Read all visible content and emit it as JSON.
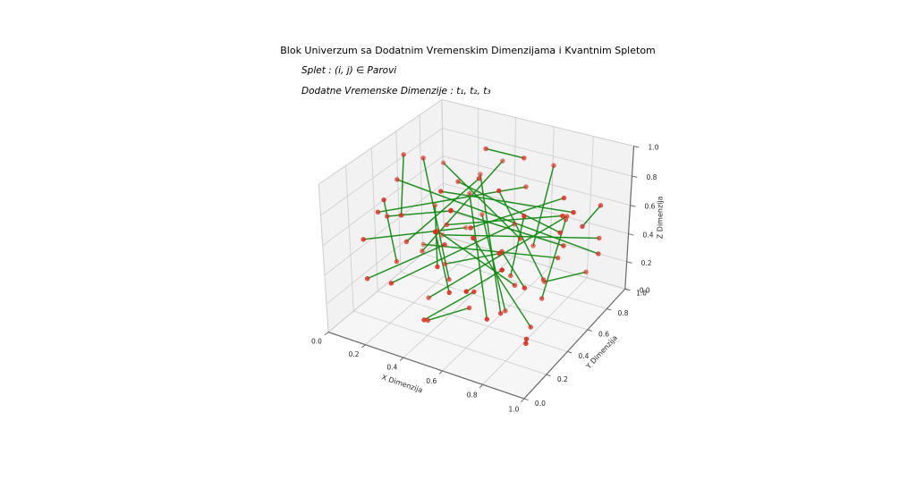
{
  "figure": {
    "background": "#ffffff"
  },
  "annotations": [
    {
      "text": "Splet : (i, j) ∈ Parovi"
    },
    {
      "text": "Dodatne Vremenske Dimenzije : t₁, t₂, t₃"
    }
  ],
  "chart_data": {
    "type": "scatter",
    "projection": "3d",
    "title": "Blok Univerzum sa Dodatnim Vremenskim Dimenzijama i Kvantnim Spletom",
    "xlabel": "X Dimenzija",
    "ylabel": "Y Dimenzija",
    "zlabel": "Z Dimenzija",
    "xlim": [
      0,
      1
    ],
    "ylim": [
      0,
      1
    ],
    "zlim": [
      0,
      1
    ],
    "ticks": [
      0,
      0.2,
      0.4,
      0.6,
      0.8,
      1.0
    ],
    "grid": true,
    "legend": null,
    "view": {
      "elev": 30,
      "azim": -60,
      "zaspect": 0.75,
      "perspective": 0.16
    },
    "colors": {
      "point": "#f02a1f",
      "point_edge": "#c62820",
      "line": "#0f8a0f",
      "pane": "#f2f2f2",
      "pane_floor": "#f6f6f6",
      "pane_edge": "#dedede",
      "grid": "#cccccc",
      "axis": "#6b6b6b",
      "text": "#262626"
    },
    "points": [
      [
        0.13,
        0.62,
        0.85
      ],
      [
        0.72,
        0.28,
        0.64
      ],
      [
        0.45,
        0.91,
        0.32
      ],
      [
        0.88,
        0.55,
        0.77
      ],
      [
        0.21,
        0.34,
        0.48
      ],
      [
        0.57,
        0.77,
        0.91
      ],
      [
        0.94,
        0.12,
        0.25
      ],
      [
        0.36,
        0.48,
        0.66
      ],
      [
        0.08,
        0.85,
        0.14
      ],
      [
        0.63,
        0.22,
        0.39
      ],
      [
        0.29,
        0.66,
        0.72
      ],
      [
        0.81,
        0.41,
        0.08
      ],
      [
        0.52,
        0.09,
        0.83
      ],
      [
        0.17,
        0.53,
        0.27
      ],
      [
        0.75,
        0.86,
        0.52
      ],
      [
        0.41,
        0.19,
        0.12
      ],
      [
        0.98,
        0.72,
        0.44
      ],
      [
        0.24,
        0.95,
        0.58
      ],
      [
        0.66,
        0.38,
        0.96
      ],
      [
        0.11,
        0.27,
        0.69
      ],
      [
        0.58,
        0.64,
        0.18
      ],
      [
        0.85,
        0.07,
        0.73
      ],
      [
        0.33,
        0.81,
        0.41
      ],
      [
        0.7,
        0.46,
        0.29
      ],
      [
        0.05,
        0.58,
        0.87
      ],
      [
        0.49,
        0.15,
        0.55
      ],
      [
        0.91,
        0.69,
        0.62
      ],
      [
        0.27,
        0.42,
        0.05
      ],
      [
        0.64,
        0.93,
        0.79
      ],
      [
        0.15,
        0.11,
        0.36
      ],
      [
        0.78,
        0.57,
        0.15
      ],
      [
        0.39,
        0.74,
        0.93
      ],
      [
        0.86,
        0.25,
        0.49
      ],
      [
        0.2,
        0.88,
        0.22
      ],
      [
        0.55,
        0.33,
        0.71
      ],
      [
        0.96,
        0.49,
        0.86
      ],
      [
        0.31,
        0.06,
        0.43
      ],
      [
        0.68,
        0.79,
        0.07
      ],
      [
        0.09,
        0.37,
        0.59
      ],
      [
        0.74,
        0.14,
        0.31
      ],
      [
        0.43,
        0.61,
        0.82
      ],
      [
        0.89,
        0.92,
        0.38
      ],
      [
        0.26,
        0.23,
        0.75
      ],
      [
        0.61,
        0.5,
        0.46
      ],
      [
        0.03,
        0.76,
        0.11
      ],
      [
        0.53,
        0.87,
        0.64
      ],
      [
        0.82,
        0.31,
        0.9
      ],
      [
        0.18,
        0.65,
        0.34
      ],
      [
        0.71,
        0.02,
        0.57
      ],
      [
        0.37,
        0.44,
        0.21
      ],
      [
        0.93,
        0.83,
        0.68
      ],
      [
        0.22,
        0.16,
        0.88
      ],
      [
        0.59,
        0.71,
        0.4
      ],
      [
        0.07,
        0.49,
        0.76
      ],
      [
        0.76,
        0.62,
        0.24
      ],
      [
        0.46,
        0.26,
        0.61
      ],
      [
        0.84,
        0.9,
        0.13
      ],
      [
        0.3,
        0.54,
        0.5
      ],
      [
        0.65,
        0.18,
        0.78
      ],
      [
        0.12,
        0.73,
        0.45
      ],
      [
        0.5,
        0.4,
        0.09
      ],
      [
        0.87,
        0.59,
        0.54
      ],
      [
        0.35,
        0.97,
        0.7
      ],
      [
        0.69,
        0.35,
        0.17
      ],
      [
        0.16,
        0.08,
        0.65
      ],
      [
        0.6,
        0.82,
        0.28
      ],
      [
        0.92,
        0.45,
        0.74
      ],
      [
        0.25,
        0.6,
        0.16
      ],
      [
        0.56,
        0.13,
        0.42
      ],
      [
        0.04,
        0.94,
        0.6
      ],
      [
        0.79,
        0.7,
        0.35
      ],
      [
        0.42,
        0.3,
        0.92
      ],
      [
        0.9,
        0.2,
        0.2
      ],
      [
        0.28,
        0.78,
        0.56
      ],
      [
        0.62,
        0.52,
        0.03
      ],
      [
        0.14,
        0.36,
        0.3
      ],
      [
        0.73,
        0.89,
        0.47
      ],
      [
        0.48,
        0.05,
        0.26
      ],
      [
        0.83,
        0.66,
        0.8
      ],
      [
        0.34,
        0.51,
        0.63
      ]
    ],
    "edges": [
      [
        3,
        57
      ],
      [
        12,
        68
      ],
      [
        5,
        31
      ],
      [
        22,
        74
      ],
      [
        0,
        49
      ],
      [
        17,
        63
      ],
      [
        8,
        41
      ],
      [
        29,
        55
      ],
      [
        44,
        70
      ],
      [
        2,
        36
      ],
      [
        60,
        15
      ],
      [
        9,
        77
      ],
      [
        26,
        50
      ],
      [
        33,
        64
      ],
      [
        6,
        72
      ],
      [
        19,
        45
      ],
      [
        58,
        11
      ],
      [
        38,
        79
      ],
      [
        14,
        27
      ],
      [
        52,
        69
      ],
      [
        7,
        61
      ],
      [
        23,
        47
      ],
      [
        71,
        35
      ],
      [
        10,
        66
      ],
      [
        40,
        4
      ],
      [
        54,
        18
      ],
      [
        30,
        76
      ],
      [
        62,
        13
      ],
      [
        21,
        48
      ],
      [
        67,
        1
      ],
      [
        25,
        59
      ],
      [
        73,
        39
      ],
      [
        16,
        53
      ],
      [
        34,
        78
      ],
      [
        46,
        20
      ],
      [
        65,
        28
      ],
      [
        51,
        75
      ],
      [
        37,
        56
      ],
      [
        24,
        42
      ],
      [
        32,
        43
      ]
    ]
  }
}
